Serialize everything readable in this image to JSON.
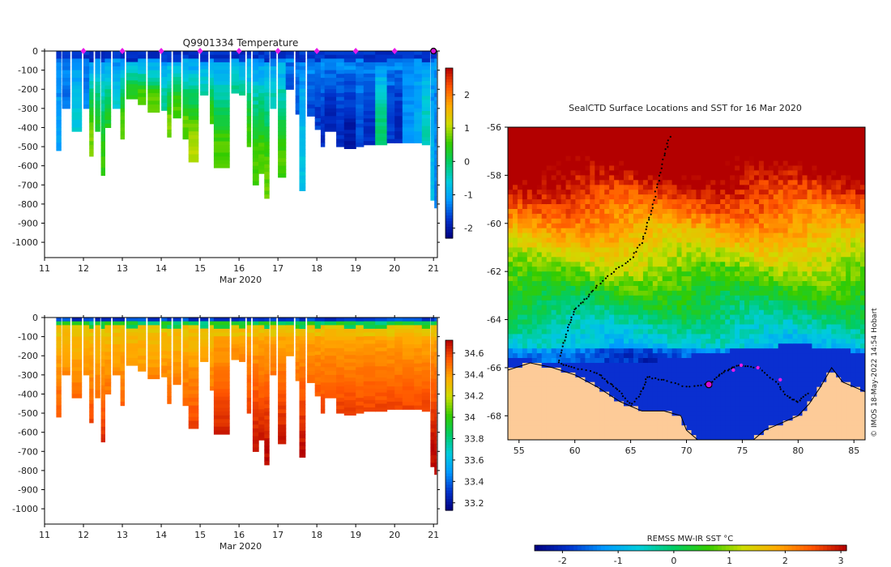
{
  "copyright": "© IMOS 18-May-2022 14:54 Hobart",
  "chart_data": [
    {
      "id": "temperature",
      "type": "heatmap",
      "title": "Q9901334  Temperature",
      "xlabel": "Mar 2020",
      "ylabel": "",
      "xlim": [
        11,
        21.1
      ],
      "ylim": [
        -1080,
        0
      ],
      "xticks": [
        11,
        12,
        13,
        14,
        15,
        16,
        17,
        18,
        19,
        20,
        21
      ],
      "yticks": [
        0,
        -100,
        -200,
        -300,
        -400,
        -500,
        -600,
        -700,
        -800,
        -900,
        -1000
      ],
      "colorbar": {
        "min": -2.3,
        "max": 2.8,
        "ticks": [
          2,
          1,
          0,
          -1,
          -2
        ],
        "colors": [
          "#00007f",
          "#0033cc",
          "#0099ff",
          "#00ccdd",
          "#00cc66",
          "#33cc00",
          "#ccdd00",
          "#ffaa00",
          "#ff5500",
          "#b30000"
        ]
      },
      "surface_markers_x": [
        12,
        13,
        14,
        15,
        16,
        17,
        18,
        19,
        20,
        21
      ],
      "profiles": [
        {
          "x": 11.3,
          "w": 0.12,
          "depth": 520,
          "deep": -1.1
        },
        {
          "x": 11.45,
          "w": 0.2,
          "depth": 300,
          "deep": -1.4
        },
        {
          "x": 11.7,
          "w": 0.25,
          "depth": 420,
          "deep": -0.6
        },
        {
          "x": 12.0,
          "w": 0.15,
          "depth": 300,
          "deep": -1.3
        },
        {
          "x": 12.15,
          "w": 0.1,
          "depth": 550,
          "deep": 0.8
        },
        {
          "x": 12.3,
          "w": 0.12,
          "depth": 420,
          "deep": 0.3
        },
        {
          "x": 12.45,
          "w": 0.1,
          "depth": 650,
          "deep": 0.5
        },
        {
          "x": 12.55,
          "w": 0.15,
          "depth": 400,
          "deep": 0.3
        },
        {
          "x": 12.75,
          "w": 0.2,
          "depth": 300,
          "deep": -0.6
        },
        {
          "x": 12.95,
          "w": 0.1,
          "depth": 460,
          "deep": 0.7
        },
        {
          "x": 13.1,
          "w": 0.3,
          "depth": 250,
          "deep": 0.4
        },
        {
          "x": 13.4,
          "w": 0.2,
          "depth": 280,
          "deep": 0.6
        },
        {
          "x": 13.65,
          "w": 0.3,
          "depth": 320,
          "deep": 0.7
        },
        {
          "x": 14.0,
          "w": 0.15,
          "depth": 310,
          "deep": -0.3
        },
        {
          "x": 14.15,
          "w": 0.1,
          "depth": 450,
          "deep": 0.8
        },
        {
          "x": 14.3,
          "w": 0.2,
          "depth": 350,
          "deep": 0.6
        },
        {
          "x": 14.55,
          "w": 0.15,
          "depth": 460,
          "deep": 0.7
        },
        {
          "x": 14.7,
          "w": 0.25,
          "depth": 580,
          "deep": 1.0
        },
        {
          "x": 15.0,
          "w": 0.2,
          "depth": 230,
          "deep": -0.4
        },
        {
          "x": 15.25,
          "w": 0.1,
          "depth": 380,
          "deep": 0.5
        },
        {
          "x": 15.35,
          "w": 0.4,
          "depth": 610,
          "deep": 0.6
        },
        {
          "x": 15.8,
          "w": 0.2,
          "depth": 220,
          "deep": -0.2
        },
        {
          "x": 16.0,
          "w": 0.15,
          "depth": 230,
          "deep": -0.3
        },
        {
          "x": 16.2,
          "w": 0.1,
          "depth": 500,
          "deep": 0.5
        },
        {
          "x": 16.35,
          "w": 0.15,
          "depth": 700,
          "deep": 0.6
        },
        {
          "x": 16.5,
          "w": 0.15,
          "depth": 640,
          "deep": 0.6
        },
        {
          "x": 16.65,
          "w": 0.12,
          "depth": 770,
          "deep": 0.7
        },
        {
          "x": 16.8,
          "w": 0.15,
          "depth": 300,
          "deep": -0.4
        },
        {
          "x": 17.0,
          "w": 0.2,
          "depth": 660,
          "deep": 0.6
        },
        {
          "x": 17.2,
          "w": 0.2,
          "depth": 200,
          "deep": -1.6
        },
        {
          "x": 17.45,
          "w": 0.1,
          "depth": 330,
          "deep": -1.5
        },
        {
          "x": 17.55,
          "w": 0.15,
          "depth": 730,
          "deep": -0.7
        },
        {
          "x": 17.75,
          "w": 0.2,
          "depth": 340,
          "deep": -1.6
        },
        {
          "x": 17.95,
          "w": 0.15,
          "depth": 410,
          "deep": -1.7
        },
        {
          "x": 18.1,
          "w": 0.1,
          "depth": 500,
          "deep": -1.8
        },
        {
          "x": 18.2,
          "w": 0.3,
          "depth": 420,
          "deep": -1.9
        },
        {
          "x": 18.5,
          "w": 0.2,
          "depth": 500,
          "deep": -1.8
        },
        {
          "x": 18.7,
          "w": 0.3,
          "depth": 510,
          "deep": -2.0
        },
        {
          "x": 19.0,
          "w": 0.2,
          "depth": 500,
          "deep": -1.6
        },
        {
          "x": 19.2,
          "w": 0.3,
          "depth": 490,
          "deep": -1.8
        },
        {
          "x": 19.5,
          "w": 0.3,
          "depth": 490,
          "deep": -0.1
        },
        {
          "x": 19.8,
          "w": 0.2,
          "depth": 480,
          "deep": -1.7
        },
        {
          "x": 20.0,
          "w": 0.2,
          "depth": 480,
          "deep": -1.9
        },
        {
          "x": 20.2,
          "w": 0.3,
          "depth": 480,
          "deep": -1.2
        },
        {
          "x": 20.5,
          "w": 0.2,
          "depth": 480,
          "deep": -1.0
        },
        {
          "x": 20.7,
          "w": 0.2,
          "depth": 490,
          "deep": -0.4
        },
        {
          "x": 20.92,
          "w": 0.1,
          "depth": 780,
          "deep": -0.8
        },
        {
          "x": 21.02,
          "w": 0.05,
          "depth": 820,
          "deep": -1.3
        }
      ]
    },
    {
      "id": "salinity",
      "type": "heatmap",
      "title": "",
      "xlabel": "Mar 2020",
      "ylabel": "",
      "xlim": [
        11,
        21.1
      ],
      "ylim": [
        -1080,
        0
      ],
      "xticks": [
        11,
        12,
        13,
        14,
        15,
        16,
        17,
        18,
        19,
        20,
        21
      ],
      "yticks": [
        0,
        -100,
        -200,
        -300,
        -400,
        -500,
        -600,
        -700,
        -800,
        -900,
        -1000
      ],
      "colorbar": {
        "min": 33.13,
        "max": 34.72,
        "ticks": [
          34.6,
          34.4,
          34.2,
          34,
          33.8,
          33.6,
          33.4,
          33.2
        ],
        "colors": [
          "#00007f",
          "#0033cc",
          "#0099ff",
          "#00ccdd",
          "#00cc66",
          "#33cc00",
          "#ccdd00",
          "#ffaa00",
          "#ff5500",
          "#b30000"
        ]
      }
    },
    {
      "id": "sst-map",
      "type": "heatmap",
      "title": "SealCTD Surface Locations and SST for 16 Mar 2020",
      "xlabel": "",
      "ylabel": "",
      "xlim": [
        54,
        86
      ],
      "ylim": [
        -69,
        -56
      ],
      "xticks": [
        55,
        60,
        65,
        70,
        75,
        80,
        85
      ],
      "yticks": [
        -56,
        -58,
        -60,
        -62,
        -64,
        -66,
        -68
      ],
      "colorbar_label": "REMSS MW-IR SST °C",
      "colorbar": {
        "min": -2.5,
        "max": 3.1,
        "ticks": [
          -2,
          -1,
          0,
          1,
          2,
          3
        ],
        "colors": [
          "#00007f",
          "#0033cc",
          "#0099ff",
          "#00ccdd",
          "#00cc66",
          "#33cc00",
          "#ccdd00",
          "#ffaa00",
          "#ff5500",
          "#b30000"
        ]
      },
      "land_color": "#fdcb98",
      "ice_color": "#0a2fd0",
      "coastline": [
        [
          54,
          -66.1
        ],
        [
          56,
          -65.8
        ],
        [
          58,
          -66.0
        ],
        [
          60,
          -66.3
        ],
        [
          62,
          -66.8
        ],
        [
          64,
          -67.4
        ],
        [
          66,
          -67.8
        ],
        [
          68,
          -67.8
        ],
        [
          69.5,
          -68.0
        ],
        [
          70,
          -68.6
        ],
        [
          71,
          -69.0
        ],
        [
          72,
          -69.0
        ],
        [
          76,
          -69.0
        ],
        [
          77,
          -68.6
        ],
        [
          78,
          -68.4
        ],
        [
          80,
          -68.0
        ],
        [
          81,
          -67.5
        ],
        [
          82,
          -66.8
        ],
        [
          83,
          -66.0
        ],
        [
          84,
          -66.6
        ],
        [
          86,
          -67.0
        ]
      ],
      "track": [
        [
          68.5,
          -56.4
        ],
        [
          68.0,
          -57.2
        ],
        [
          67.5,
          -58.2
        ],
        [
          67.0,
          -59.2
        ],
        [
          66.5,
          -60.0
        ],
        [
          66.0,
          -60.8
        ],
        [
          65.0,
          -61.5
        ],
        [
          63.5,
          -62.0
        ],
        [
          62.0,
          -62.6
        ],
        [
          61.0,
          -63.1
        ],
        [
          60.0,
          -63.6
        ],
        [
          59.5,
          -64.2
        ],
        [
          59.0,
          -65.0
        ],
        [
          58.5,
          -65.8
        ],
        [
          60.0,
          -66.0
        ],
        [
          62.0,
          -66.2
        ],
        [
          63.0,
          -66.6
        ],
        [
          64.0,
          -67.0
        ],
        [
          65.0,
          -67.6
        ],
        [
          66.0,
          -67.0
        ],
        [
          66.5,
          -66.4
        ],
        [
          68.0,
          -66.5
        ],
        [
          70.0,
          -66.8
        ],
        [
          72.0,
          -66.7
        ],
        [
          73.0,
          -66.3
        ],
        [
          74.0,
          -66.0
        ],
        [
          75.0,
          -65.9
        ],
        [
          76.5,
          -66.0
        ],
        [
          78.0,
          -66.6
        ],
        [
          79.0,
          -67.2
        ],
        [
          80.0,
          -67.4
        ],
        [
          81.0,
          -67.0
        ]
      ],
      "surface_points": [
        [
          72.2,
          -66.7
        ],
        [
          74.2,
          -66.1
        ],
        [
          74.9,
          -65.9
        ],
        [
          76.4,
          -66.0
        ],
        [
          78.4,
          -66.5
        ]
      ],
      "current_position": [
        72.0,
        -66.7
      ]
    }
  ]
}
